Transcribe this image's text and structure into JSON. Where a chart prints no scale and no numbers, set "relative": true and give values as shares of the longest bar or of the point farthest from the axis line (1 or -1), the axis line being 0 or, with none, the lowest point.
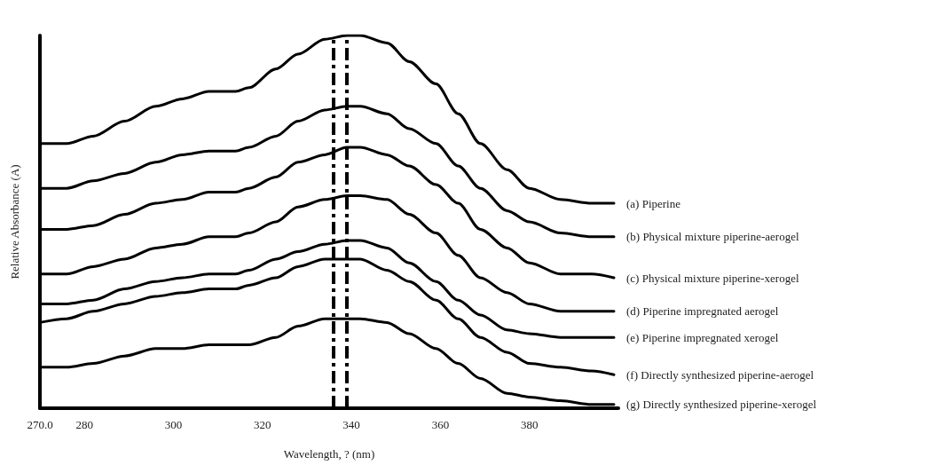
{
  "chart_data": {
    "type": "line",
    "relative": true,
    "xlabel": "Wavelength, ? (nm)",
    "ylabel": "Relative Absorbance (A)",
    "x": [
      270,
      276,
      282,
      289,
      296,
      302,
      308,
      314,
      317,
      323,
      328,
      334,
      339,
      342,
      348,
      353,
      359,
      364,
      369,
      375,
      380,
      387,
      394,
      399
    ],
    "xlim": [
      270,
      400
    ],
    "xticks": [
      {
        "value": 270,
        "label": "270.0"
      },
      280,
      300,
      320,
      340,
      360,
      380
    ],
    "series": [
      {
        "name": "(a) Piperine",
        "color": "#000000",
        "values": [
          0.71,
          0.71,
          0.73,
          0.77,
          0.81,
          0.83,
          0.85,
          0.85,
          0.86,
          0.91,
          0.95,
          0.99,
          1.0,
          1.0,
          0.98,
          0.93,
          0.87,
          0.79,
          0.71,
          0.64,
          0.59,
          0.56,
          0.55,
          0.55
        ]
      },
      {
        "name": "(b) Physical mixture piperine-aerogel",
        "color": "#000000",
        "values": [
          0.59,
          0.59,
          0.61,
          0.63,
          0.66,
          0.68,
          0.69,
          0.69,
          0.7,
          0.73,
          0.77,
          0.8,
          0.81,
          0.81,
          0.79,
          0.75,
          0.71,
          0.65,
          0.59,
          0.53,
          0.5,
          0.47,
          0.46,
          0.46
        ]
      },
      {
        "name": "(c) Physical mixture piperine-xerogel",
        "color": "#000000",
        "values": [
          0.48,
          0.48,
          0.49,
          0.52,
          0.55,
          0.56,
          0.58,
          0.58,
          0.59,
          0.62,
          0.66,
          0.68,
          0.7,
          0.7,
          0.68,
          0.65,
          0.6,
          0.55,
          0.48,
          0.43,
          0.39,
          0.36,
          0.36,
          0.35
        ]
      },
      {
        "name": "(d) Piperine impregnated aerogel",
        "color": "#000000",
        "values": [
          0.36,
          0.36,
          0.38,
          0.4,
          0.43,
          0.44,
          0.46,
          0.46,
          0.47,
          0.5,
          0.54,
          0.56,
          0.57,
          0.57,
          0.56,
          0.52,
          0.47,
          0.41,
          0.35,
          0.31,
          0.28,
          0.26,
          0.26,
          0.26
        ]
      },
      {
        "name": "(e) Piperine impregnated xerogel",
        "color": "#000000",
        "values": [
          0.28,
          0.28,
          0.29,
          0.32,
          0.34,
          0.35,
          0.36,
          0.36,
          0.37,
          0.4,
          0.42,
          0.44,
          0.45,
          0.45,
          0.43,
          0.39,
          0.34,
          0.29,
          0.25,
          0.21,
          0.2,
          0.19,
          0.19,
          0.19
        ]
      },
      {
        "name": "(f) Directly synthesized piperine-aerogel",
        "color": "#000000",
        "values": [
          0.23,
          0.24,
          0.26,
          0.28,
          0.3,
          0.31,
          0.32,
          0.32,
          0.33,
          0.35,
          0.38,
          0.4,
          0.4,
          0.4,
          0.37,
          0.34,
          0.29,
          0.24,
          0.19,
          0.15,
          0.12,
          0.11,
          0.1,
          0.09
        ]
      },
      {
        "name": "(g) Directly synthesized piperine-xerogel",
        "color": "#000000",
        "values": [
          0.11,
          0.11,
          0.12,
          0.14,
          0.16,
          0.16,
          0.17,
          0.17,
          0.17,
          0.19,
          0.22,
          0.24,
          0.24,
          0.24,
          0.23,
          0.2,
          0.16,
          0.12,
          0.08,
          0.04,
          0.03,
          0.02,
          0.01,
          0.01
        ]
      }
    ],
    "ref_lines": [
      {
        "axis": "x",
        "value": 336,
        "color": "#000000",
        "line_style": "dashed"
      },
      {
        "axis": "x",
        "value": 339,
        "color": "#000000",
        "line_style": "dashed"
      }
    ],
    "marker": "none",
    "line_style": "solid",
    "grid": false,
    "legend": false
  }
}
